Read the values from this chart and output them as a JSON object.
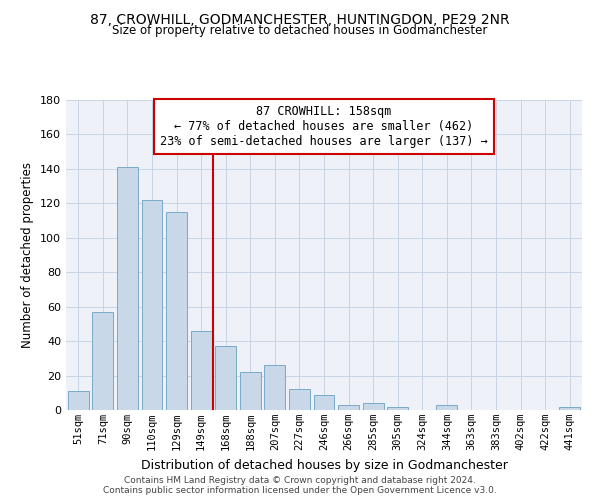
{
  "title1": "87, CROWHILL, GODMANCHESTER, HUNTINGDON, PE29 2NR",
  "title2": "Size of property relative to detached houses in Godmanchester",
  "xlabel": "Distribution of detached houses by size in Godmanchester",
  "ylabel": "Number of detached properties",
  "categories": [
    "51sqm",
    "71sqm",
    "90sqm",
    "110sqm",
    "129sqm",
    "149sqm",
    "168sqm",
    "188sqm",
    "207sqm",
    "227sqm",
    "246sqm",
    "266sqm",
    "285sqm",
    "305sqm",
    "324sqm",
    "344sqm",
    "363sqm",
    "383sqm",
    "402sqm",
    "422sqm",
    "441sqm"
  ],
  "values": [
    11,
    57,
    141,
    122,
    115,
    46,
    37,
    22,
    26,
    12,
    9,
    3,
    4,
    2,
    0,
    3,
    0,
    0,
    0,
    0,
    2
  ],
  "bar_color": "#c8d8e8",
  "bar_edge_color": "#7aaac8",
  "grid_color": "#c8d4e4",
  "bg_color": "#eef2f8",
  "vline_x": 5.5,
  "vline_color": "#cc0000",
  "annotation_text": "87 CROWHILL: 158sqm\n← 77% of detached houses are smaller (462)\n23% of semi-detached houses are larger (137) →",
  "annotation_box_color": "#cc0000",
  "ylim": [
    0,
    180
  ],
  "yticks": [
    0,
    20,
    40,
    60,
    80,
    100,
    120,
    140,
    160,
    180
  ],
  "footer": "Contains HM Land Registry data © Crown copyright and database right 2024.\nContains public sector information licensed under the Open Government Licence v3.0."
}
